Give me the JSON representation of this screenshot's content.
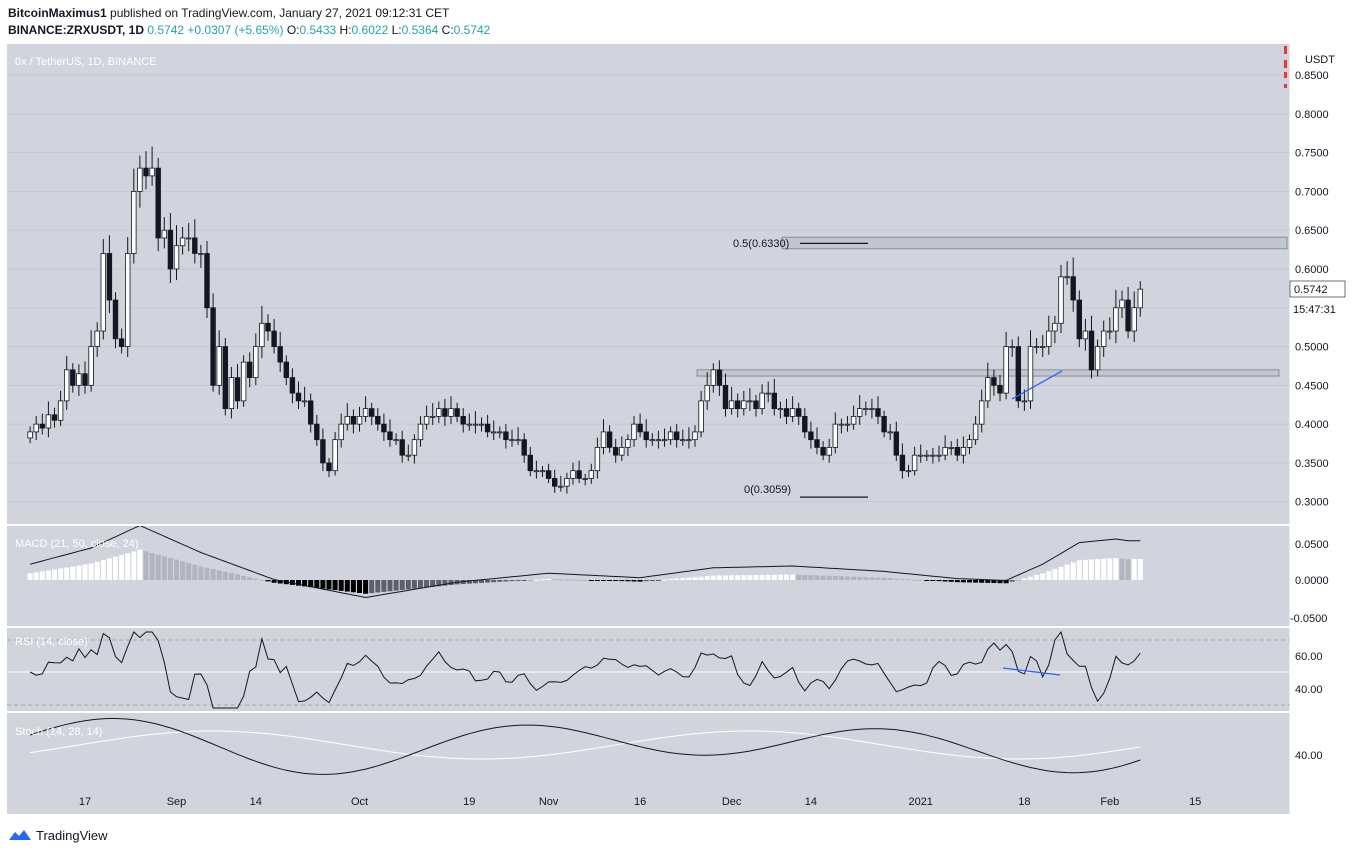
{
  "header": {
    "author": "BitcoinMaximus1",
    "published_text": " published on TradingView.com, January 27, 2021 09:12:31 CET",
    "symbol_line": "BINANCE:ZRXUSDT, 1D",
    "last": "0.5742",
    "change": "+0.0307 (+5.65%)",
    "o_label": "O:",
    "o": "0.5433",
    "h_label": "H:",
    "h": "0.6022",
    "l_label": "L:",
    "l": "0.5364",
    "c_label": "C:",
    "c": "0.5742"
  },
  "pane_title": "0x / TetherUS, 1D, BINANCE",
  "currency": "USDT",
  "price_tag": "0.5742",
  "countdown": "15:47:31",
  "fib": {
    "upper": "0.5(0.6330)",
    "lower": "0(0.3059)"
  },
  "macd": {
    "label": "MACD (21, 50, close, 24)",
    "ticks": [
      "0.0500",
      "0.0000",
      "-0.0500"
    ]
  },
  "rsi": {
    "label": "RSI (14, close)",
    "ticks": [
      "60.00",
      "40.00"
    ]
  },
  "stoch": {
    "label": "Stoch (14, 28, 14)",
    "ticks": [
      "40.00"
    ]
  },
  "footer": {
    "brand": "TradingView"
  },
  "colors": {
    "bg": "#d1d4dc",
    "up": "#ffffff",
    "down": "#131722",
    "divergence": "#2962ff"
  },
  "chart_data": {
    "type": "candlestick",
    "y_ticks": [
      0.3,
      0.35,
      0.4,
      0.45,
      0.5,
      0.55,
      0.6,
      0.65,
      0.7,
      0.75,
      0.8,
      0.85
    ],
    "y_tick_labels": [
      "0.3000",
      "0.3500",
      "0.4000",
      "0.4500",
      "0.5000",
      "0.5500",
      "0.6000",
      "0.6500",
      "0.7000",
      "0.7500",
      "0.8000",
      "0.8500"
    ],
    "ylim": [
      0.27,
      0.89
    ],
    "x_labels": [
      "17",
      "Sep",
      "14",
      "Oct",
      "19",
      "Nov",
      "16",
      "Dec",
      "14",
      "2021",
      "18",
      "Feb",
      "15"
    ],
    "start_date": "2020-08-08",
    "close": [
      0.39,
      0.4,
      0.395,
      0.412,
      0.405,
      0.43,
      0.47,
      0.45,
      0.465,
      0.45,
      0.5,
      0.52,
      0.62,
      0.56,
      0.51,
      0.5,
      0.62,
      0.7,
      0.73,
      0.72,
      0.73,
      0.64,
      0.65,
      0.6,
      0.63,
      0.64,
      0.64,
      0.62,
      0.62,
      0.55,
      0.45,
      0.5,
      0.42,
      0.46,
      0.43,
      0.48,
      0.46,
      0.5,
      0.53,
      0.52,
      0.5,
      0.48,
      0.46,
      0.44,
      0.43,
      0.43,
      0.4,
      0.38,
      0.35,
      0.34,
      0.38,
      0.4,
      0.41,
      0.4,
      0.41,
      0.42,
      0.41,
      0.4,
      0.39,
      0.38,
      0.38,
      0.36,
      0.36,
      0.38,
      0.4,
      0.41,
      0.41,
      0.42,
      0.41,
      0.42,
      0.41,
      0.4,
      0.4,
      0.4,
      0.4,
      0.39,
      0.39,
      0.39,
      0.38,
      0.38,
      0.38,
      0.36,
      0.34,
      0.34,
      0.34,
      0.33,
      0.32,
      0.32,
      0.33,
      0.34,
      0.33,
      0.33,
      0.34,
      0.37,
      0.39,
      0.37,
      0.36,
      0.37,
      0.38,
      0.4,
      0.39,
      0.38,
      0.38,
      0.38,
      0.38,
      0.39,
      0.38,
      0.38,
      0.38,
      0.39,
      0.43,
      0.45,
      0.47,
      0.45,
      0.42,
      0.43,
      0.42,
      0.43,
      0.43,
      0.42,
      0.44,
      0.44,
      0.42,
      0.42,
      0.41,
      0.42,
      0.41,
      0.39,
      0.38,
      0.37,
      0.36,
      0.37,
      0.4,
      0.4,
      0.4,
      0.41,
      0.42,
      0.42,
      0.42,
      0.41,
      0.39,
      0.39,
      0.36,
      0.34,
      0.34,
      0.36,
      0.36,
      0.36,
      0.36,
      0.36,
      0.37,
      0.37,
      0.36,
      0.37,
      0.38,
      0.4,
      0.43,
      0.46,
      0.45,
      0.44,
      0.5,
      0.5,
      0.43,
      0.43,
      0.5,
      0.5,
      0.5,
      0.52,
      0.53,
      0.59,
      0.59,
      0.56,
      0.51,
      0.52,
      0.47,
      0.5,
      0.52,
      0.52,
      0.55,
      0.56,
      0.52,
      0.55,
      0.574
    ],
    "series": [
      {
        "name": "ZRXUSDT"
      }
    ],
    "fib_levels": [
      0.633,
      0.3059
    ],
    "zones": [
      [
        0.626,
        0.641
      ],
      [
        0.462,
        0.47
      ]
    ]
  }
}
